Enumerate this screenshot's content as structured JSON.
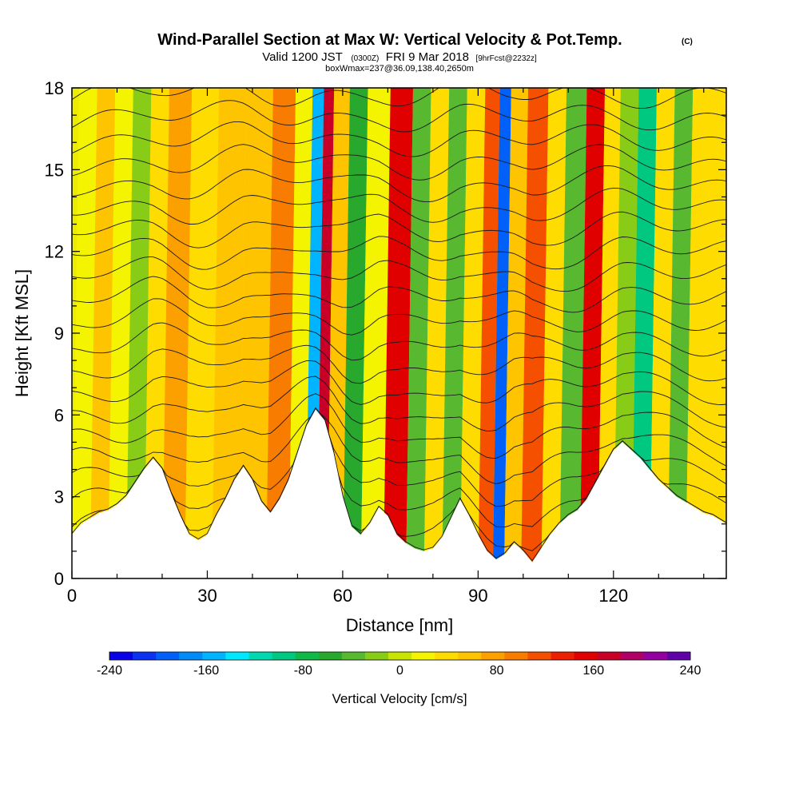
{
  "header": {
    "title": "Wind-Parallel Section at Max W: Vertical Velocity & Pot.Temp.",
    "title_mark": "(C)",
    "valid_prefix": "Valid 1200 JST",
    "valid_utc": "(0300Z)",
    "valid_date": "FRI 9 Mar 2018",
    "forecast": "[9hrFcst@2232z]",
    "box_info": "boxWmax=237@36.09,138.40,2650m"
  },
  "chart_data": {
    "type": "heatmap",
    "xlabel": "Distance [nm]",
    "ylabel": "Height [Kft MSL]",
    "xlim": [
      0,
      145
    ],
    "ylim": [
      0,
      18
    ],
    "x_ticks": [
      "0",
      "30",
      "60",
      "90",
      "120"
    ],
    "x_tick_values": [
      0,
      30,
      60,
      90,
      120
    ],
    "y_ticks": [
      "0",
      "3",
      "6",
      "9",
      "12",
      "15",
      "18"
    ],
    "y_tick_values": [
      0,
      3,
      6,
      9,
      12,
      15,
      18
    ],
    "terrain": {
      "x": [
        0,
        2,
        4,
        6,
        8,
        10,
        12,
        14,
        16,
        18,
        20,
        22,
        24,
        26,
        28,
        30,
        32,
        34,
        36,
        38,
        40,
        42,
        44,
        46,
        48,
        50,
        52,
        54,
        56,
        58,
        60,
        62,
        64,
        66,
        68,
        70,
        72,
        74,
        76,
        78,
        80,
        82,
        84,
        86,
        88,
        90,
        92,
        94,
        96,
        98,
        100,
        102,
        104,
        106,
        108,
        110,
        112,
        114,
        116,
        118,
        120,
        122,
        124,
        126,
        128,
        130,
        132,
        134,
        136,
        138,
        140,
        142,
        144,
        145
      ],
      "y": [
        1.6,
        2.0,
        2.2,
        2.4,
        2.5,
        2.7,
        3.0,
        3.5,
        4.0,
        4.4,
        4.0,
        3.1,
        2.3,
        1.6,
        1.4,
        1.6,
        2.3,
        2.9,
        3.6,
        4.1,
        3.6,
        2.8,
        2.4,
        2.9,
        3.6,
        4.6,
        5.6,
        6.2,
        5.8,
        4.6,
        3.0,
        1.9,
        1.6,
        2.0,
        2.6,
        2.3,
        1.6,
        1.3,
        1.1,
        1.0,
        1.1,
        1.5,
        2.2,
        2.9,
        2.3,
        1.6,
        1.0,
        0.7,
        0.9,
        1.3,
        1.0,
        0.6,
        1.1,
        1.6,
        2.0,
        2.3,
        2.5,
        2.9,
        3.5,
        4.1,
        4.7,
        5.0,
        4.7,
        4.4,
        4.0,
        3.6,
        3.3,
        3.0,
        2.8,
        2.6,
        2.4,
        2.3,
        2.1,
        2.0
      ]
    },
    "vertical_velocity_bands": {
      "x": [
        2,
        6,
        10,
        14,
        18,
        22,
        28,
        34,
        40,
        46,
        50,
        53.5,
        55,
        58,
        62,
        66,
        72,
        76,
        80,
        84,
        88,
        92,
        94.5,
        97,
        102,
        106,
        110,
        115,
        118,
        122,
        126,
        130,
        134,
        138,
        142
      ],
      "w_cm_s": [
        10,
        50,
        20,
        -20,
        40,
        80,
        40,
        60,
        60,
        90,
        20,
        -160,
        170,
        60,
        -60,
        20,
        150,
        -40,
        30,
        -30,
        40,
        110,
        -200,
        60,
        120,
        30,
        -40,
        160,
        40,
        -20,
        -100,
        40,
        -40,
        30,
        30
      ]
    },
    "colorbar": {
      "title": "Vertical Velocity [cm/s]",
      "min": -240,
      "max": 240,
      "tick_labels": [
        "-240",
        "-160",
        "-80",
        "0",
        "80",
        "160",
        "240"
      ],
      "tick_values": [
        -240,
        -160,
        -80,
        0,
        80,
        160,
        240
      ],
      "colors": [
        "#0a00e8",
        "#0a32f0",
        "#0060f8",
        "#008cf8",
        "#00b4ff",
        "#00e8ff",
        "#00d8b0",
        "#00c880",
        "#10b848",
        "#28a82c",
        "#58b830",
        "#88cc18",
        "#c8e400",
        "#f4f400",
        "#ffdc00",
        "#ffc400",
        "#fca000",
        "#f87c00",
        "#f45000",
        "#ec2000",
        "#e00000",
        "#c80028",
        "#b00068",
        "#9400a0",
        "#6000a8"
      ]
    },
    "contour_lines": {
      "type": "potential temperature isentropes",
      "count": 22
    }
  }
}
